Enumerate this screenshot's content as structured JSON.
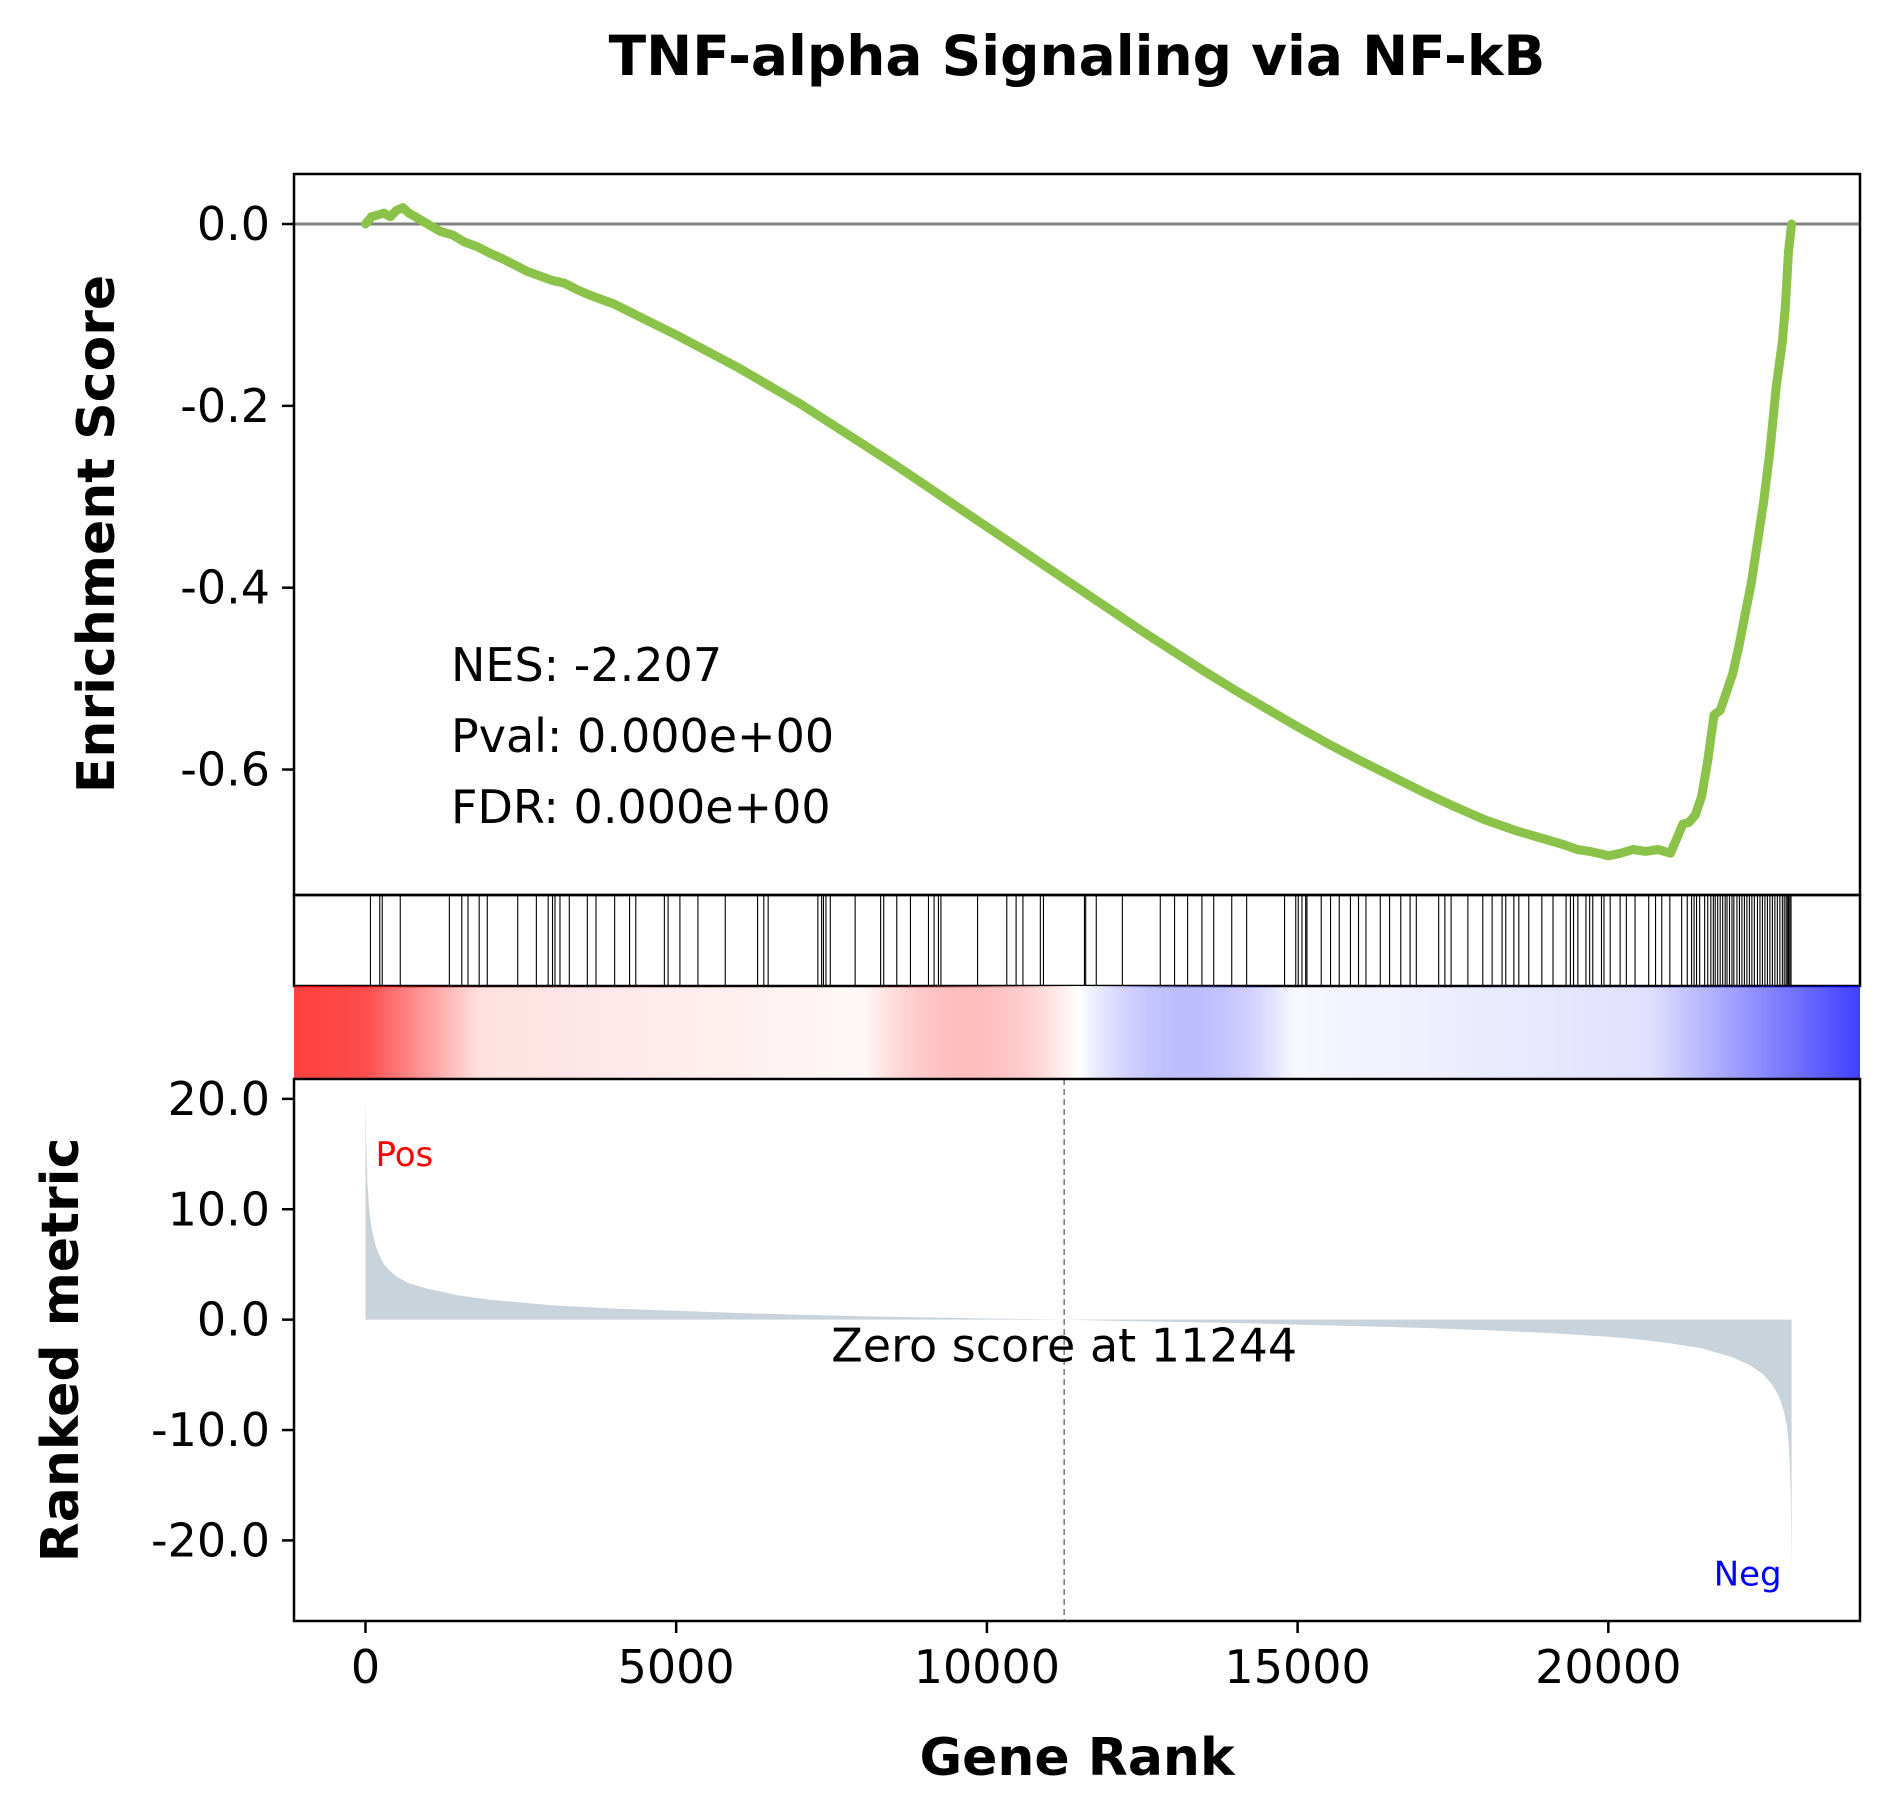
{
  "chart_data": {
    "type": "line",
    "title": "TNF-alpha Signaling via NF-kB",
    "xlabel": "Gene Rank",
    "xlim": [
      -1150,
      24050
    ],
    "x_ticks": [
      0,
      5000,
      10000,
      15000,
      20000
    ],
    "x_tick_labels": [
      "0",
      "5000",
      "10000",
      "15000",
      "20000"
    ],
    "n_genes": 22950,
    "panels": {
      "enrichment": {
        "ylabel": "Enrichment Score",
        "ylim": [
          -0.738,
          0.055
        ],
        "y_ticks": [
          0.0,
          -0.2,
          -0.4,
          -0.6
        ],
        "y_tick_labels": [
          "0.0",
          "-0.2",
          "-0.4",
          "-0.6"
        ],
        "zero_line": true,
        "line_color": "#8bc34a",
        "series": [
          {
            "x": [
              0,
              100,
              200,
              300,
              400,
              500,
              600,
              700,
              800,
              1000,
              1200,
              1400,
              1600,
              1800,
              2000,
              2200,
              2400,
              2600,
              2800,
              3000,
              3200,
              3400,
              3600,
              3800,
              4000,
              4500,
              5000,
              5500,
              6000,
              6500,
              7000,
              7500,
              8000,
              8500,
              9000,
              9500,
              10000,
              10500,
              11000,
              11500,
              12000,
              12500,
              13000,
              13500,
              14000,
              14500,
              15000,
              15500,
              16000,
              16500,
              17000,
              17500,
              18000,
              18500,
              19000,
              19300,
              19500,
              19700,
              19900,
              20000,
              20200,
              20400,
              20600,
              20800,
              21000,
              21200,
              21300,
              21400,
              21500,
              21600,
              21700,
              21800,
              21900,
              22000,
              22100,
              22200,
              22300,
              22400,
              22500,
              22600,
              22700,
              22800,
              22850,
              22900,
              22950
            ],
            "values": [
              0.0,
              0.008,
              0.01,
              0.012,
              0.008,
              0.015,
              0.018,
              0.012,
              0.008,
              0.0,
              -0.008,
              -0.012,
              -0.02,
              -0.025,
              -0.032,
              -0.038,
              -0.045,
              -0.052,
              -0.057,
              -0.062,
              -0.065,
              -0.072,
              -0.078,
              -0.083,
              -0.088,
              -0.105,
              -0.122,
              -0.14,
              -0.158,
              -0.178,
              -0.198,
              -0.22,
              -0.242,
              -0.264,
              -0.287,
              -0.31,
              -0.333,
              -0.356,
              -0.379,
              -0.402,
              -0.425,
              -0.448,
              -0.47,
              -0.492,
              -0.513,
              -0.533,
              -0.553,
              -0.572,
              -0.59,
              -0.607,
              -0.624,
              -0.64,
              -0.655,
              -0.667,
              -0.677,
              -0.683,
              -0.688,
              -0.69,
              -0.693,
              -0.695,
              -0.692,
              -0.688,
              -0.69,
              -0.688,
              -0.692,
              -0.66,
              -0.658,
              -0.65,
              -0.63,
              -0.59,
              -0.54,
              -0.535,
              -0.515,
              -0.495,
              -0.465,
              -0.43,
              -0.395,
              -0.35,
              -0.305,
              -0.25,
              -0.18,
              -0.13,
              -0.09,
              -0.03,
              0.0
            ]
          }
        ],
        "annotations": [
          "NES: -2.207",
          "Pval: 0.000e+00",
          "FDR: 0.000e+00"
        ]
      },
      "hits": {
        "positions": [
          80,
          230,
          270,
          560,
          1350,
          1550,
          1650,
          1830,
          1960,
          2450,
          2750,
          2940,
          3010,
          3050,
          3130,
          3280,
          3570,
          3710,
          4010,
          4250,
          4350,
          4810,
          4870,
          5060,
          5350,
          5790,
          6310,
          6410,
          6480,
          7280,
          7340,
          7370,
          7410,
          7480,
          7880,
          8290,
          8340,
          8550,
          8770,
          9060,
          9150,
          9220,
          9260,
          9850,
          10320,
          10470,
          10580,
          10860,
          10910,
          11570,
          11590,
          11760,
          12180,
          12790,
          13020,
          13230,
          13460,
          13650,
          13940,
          14180,
          14790,
          14970,
          15010,
          15070,
          15130,
          15150,
          15380,
          15530,
          15670,
          15850,
          15980,
          16100,
          16330,
          16480,
          16660,
          16810,
          16910,
          17270,
          17370,
          17470,
          17740,
          17980,
          18130,
          18290,
          18350,
          18480,
          18560,
          18720,
          18930,
          19110,
          19320,
          19390,
          19440,
          19510,
          19640,
          19700,
          19750,
          19890,
          19930,
          20030,
          20190,
          20290,
          20430,
          20650,
          20760,
          20860,
          20990,
          21180,
          21270,
          21340,
          21380,
          21420,
          21470,
          21550,
          21600,
          21650,
          21690,
          21720,
          21760,
          21800,
          21840,
          21880,
          21910,
          21950,
          21990,
          22020,
          22070,
          22110,
          22150,
          22190,
          22230,
          22270,
          22310,
          22350,
          22400,
          22440,
          22480,
          22520,
          22560,
          22600,
          22640,
          22680,
          22720,
          22760,
          22800,
          22830,
          22860,
          22880,
          22900,
          22920,
          22940
        ]
      },
      "colorbar": {
        "low_color": "#ff0000",
        "high_color": "#0000ff"
      },
      "ranked_metric": {
        "ylabel": "Ranked metric",
        "ylim": [
          -27.3,
          21.8
        ],
        "y_ticks": [
          20.0,
          10.0,
          0.0,
          -10.0,
          -20.0
        ],
        "y_tick_labels": [
          "20.0",
          "10.0",
          "0.0",
          "-10.0",
          "-20.0"
        ],
        "fill_color": "#c9d3dc",
        "x": [
          0,
          10,
          30,
          60,
          100,
          150,
          200,
          300,
          400,
          500,
          700,
          1000,
          1500,
          2000,
          3000,
          4000,
          5000,
          6000,
          7000,
          8000,
          9000,
          10000,
          11244,
          12000,
          13000,
          14000,
          15000,
          16000,
          17000,
          18000,
          19000,
          20000,
          20500,
          21000,
          21500,
          22000,
          22300,
          22500,
          22650,
          22750,
          22820,
          22870,
          22900,
          22920,
          22935,
          22945,
          22950
        ],
        "values": [
          19.8,
          16.5,
          12.5,
          10.0,
          8.2,
          7.0,
          6.1,
          5.0,
          4.4,
          3.9,
          3.3,
          2.8,
          2.2,
          1.8,
          1.3,
          1.0,
          0.8,
          0.6,
          0.45,
          0.3,
          0.2,
          0.1,
          0.0,
          -0.1,
          -0.2,
          -0.3,
          -0.45,
          -0.6,
          -0.75,
          -0.95,
          -1.2,
          -1.55,
          -1.8,
          -2.15,
          -2.6,
          -3.4,
          -4.2,
          -5.0,
          -6.0,
          -7.0,
          -8.2,
          -9.5,
          -11.0,
          -13.0,
          -16.0,
          -20.0,
          -24.9
        ],
        "zero_cross_rank": 11244,
        "zero_cross_label": "Zero score at 11244",
        "pos_label": "Pos",
        "neg_label": "Neg",
        "pos_color": "#ff0000",
        "neg_color": "#0000ff"
      }
    }
  }
}
